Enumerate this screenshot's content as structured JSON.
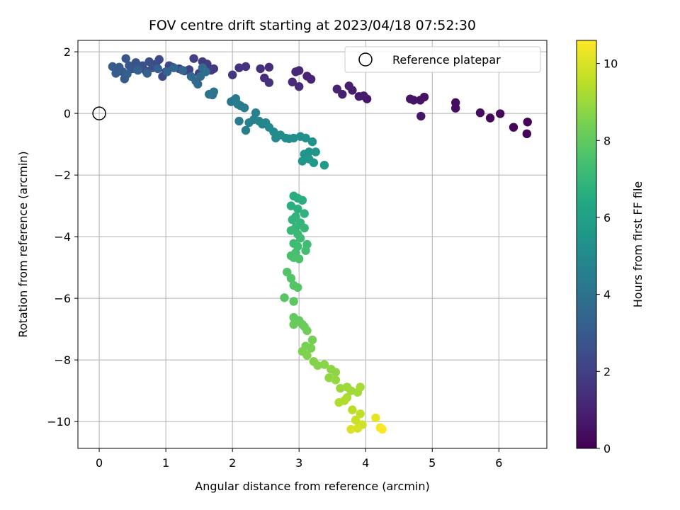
{
  "chart_data": {
    "type": "scatter",
    "title": "FOV centre drift starting at 2023/04/18 07:52:30",
    "xlabel": "Angular distance from reference (arcmin)",
    "ylabel": "Rotation from reference (arcmin)",
    "xlim": [
      -0.32,
      6.72
    ],
    "ylim": [
      -10.87,
      2.37
    ],
    "xticks": [
      0,
      1,
      2,
      3,
      4,
      5,
      6
    ],
    "yticks": [
      2,
      0,
      -2,
      -4,
      -6,
      -8,
      -10
    ],
    "xtick_labels": [
      "0",
      "1",
      "2",
      "3",
      "4",
      "5",
      "6"
    ],
    "ytick_labels": [
      "2",
      "0",
      "−2",
      "−4",
      "−6",
      "−8",
      "−10"
    ],
    "grid": true,
    "colormap": "viridis",
    "colorbar": {
      "label": "Hours from first FF file",
      "min": 0,
      "max": 10.6,
      "ticks": [
        0,
        2,
        4,
        6,
        8,
        10
      ],
      "tick_labels": [
        "0",
        "2",
        "4",
        "6",
        "8",
        "10"
      ]
    },
    "legend": {
      "position": "top-right",
      "entries": [
        "Reference platepar"
      ]
    },
    "reference_point": {
      "x": 0,
      "y": 0
    },
    "points": [
      [
        6.43,
        -0.28,
        0.05
      ],
      [
        6.42,
        -0.66,
        0.1
      ],
      [
        6.22,
        -0.45,
        0.15
      ],
      [
        6.02,
        -0.01,
        0.2
      ],
      [
        5.87,
        -0.15,
        0.25
      ],
      [
        5.72,
        0.02,
        0.3
      ],
      [
        5.35,
        0.35,
        0.35
      ],
      [
        5.35,
        0.17,
        0.4
      ],
      [
        4.88,
        0.53,
        0.45
      ],
      [
        4.82,
        0.43,
        0.5
      ],
      [
        4.72,
        0.43,
        0.55
      ],
      [
        4.67,
        0.47,
        0.6
      ],
      [
        4.83,
        -0.09,
        0.65
      ],
      [
        4.02,
        0.47,
        0.7
      ],
      [
        3.97,
        0.57,
        0.75
      ],
      [
        3.9,
        0.55,
        0.8
      ],
      [
        3.8,
        0.75,
        0.85
      ],
      [
        3.75,
        0.89,
        0.9
      ],
      [
        3.65,
        0.62,
        0.95
      ],
      [
        3.57,
        0.79,
        1.0
      ],
      [
        3.18,
        1.11,
        1.05
      ],
      [
        3.12,
        1.21,
        1.1
      ],
      [
        3.0,
        1.39,
        1.15
      ],
      [
        2.95,
        1.35,
        1.2
      ],
      [
        2.9,
        1.02,
        1.25
      ],
      [
        3.0,
        0.87,
        1.3
      ],
      [
        2.55,
        1.5,
        1.35
      ],
      [
        2.48,
        1.15,
        1.4
      ],
      [
        2.42,
        1.45,
        1.45
      ],
      [
        2.55,
        1.0,
        1.5
      ],
      [
        2.2,
        1.52,
        1.55
      ],
      [
        2.1,
        1.48,
        1.6
      ],
      [
        2.0,
        1.25,
        1.65
      ],
      [
        1.72,
        1.45,
        1.75
      ],
      [
        1.68,
        1.4,
        1.8
      ],
      [
        1.62,
        1.6,
        1.85
      ],
      [
        1.55,
        1.68,
        1.9
      ],
      [
        1.42,
        1.78,
        1.95
      ],
      [
        1.5,
        1.3,
        2.0
      ],
      [
        1.35,
        1.42,
        2.05
      ],
      [
        1.28,
        1.38,
        2.1
      ],
      [
        1.2,
        1.45,
        2.15
      ],
      [
        1.1,
        1.5,
        2.2
      ],
      [
        1.05,
        1.55,
        2.25
      ],
      [
        1.0,
        1.35,
        2.3
      ],
      [
        0.95,
        1.2,
        2.35
      ],
      [
        0.9,
        1.75,
        2.4
      ],
      [
        0.85,
        1.6,
        2.45
      ],
      [
        0.8,
        1.48,
        2.5
      ],
      [
        0.75,
        1.68,
        2.55
      ],
      [
        0.7,
        1.38,
        2.6
      ],
      [
        0.65,
        1.55,
        2.65
      ],
      [
        0.6,
        1.48,
        2.7
      ],
      [
        0.55,
        1.65,
        2.75
      ],
      [
        0.5,
        1.45,
        2.8
      ],
      [
        0.45,
        1.55,
        2.85
      ],
      [
        0.4,
        1.78,
        2.9
      ],
      [
        0.38,
        1.12,
        2.95
      ],
      [
        0.35,
        1.35,
        3.0
      ],
      [
        0.3,
        1.5,
        3.05
      ],
      [
        0.25,
        1.3,
        3.1
      ],
      [
        0.2,
        1.52,
        3.15
      ],
      [
        0.42,
        1.28,
        3.2
      ],
      [
        0.58,
        1.4,
        3.25
      ],
      [
        0.72,
        1.3,
        3.3
      ],
      [
        0.88,
        1.45,
        3.35
      ],
      [
        1.02,
        1.35,
        3.4
      ],
      [
        1.12,
        1.48,
        3.45
      ],
      [
        1.25,
        1.4,
        3.5
      ],
      [
        1.38,
        1.2,
        3.55
      ],
      [
        1.45,
        1.05,
        3.6
      ],
      [
        1.48,
        0.95,
        3.65
      ],
      [
        1.52,
        1.2,
        3.7
      ],
      [
        1.55,
        1.48,
        3.75
      ],
      [
        1.6,
        1.35,
        3.8
      ],
      [
        1.7,
        0.6,
        4.0
      ],
      [
        1.72,
        0.7,
        4.05
      ],
      [
        1.65,
        0.62,
        4.1
      ],
      [
        1.98,
        0.38,
        4.2
      ],
      [
        2.02,
        0.42,
        4.25
      ],
      [
        2.05,
        0.48,
        4.3
      ],
      [
        2.08,
        0.3,
        4.35
      ],
      [
        2.12,
        0.25,
        4.4
      ],
      [
        2.18,
        0.18,
        4.45
      ],
      [
        2.1,
        -0.25,
        4.5
      ],
      [
        2.2,
        -0.55,
        4.55
      ],
      [
        2.25,
        -0.3,
        4.6
      ],
      [
        2.32,
        -0.2,
        4.65
      ],
      [
        2.35,
        0.02,
        4.7
      ],
      [
        2.4,
        -0.25,
        4.75
      ],
      [
        2.45,
        -0.35,
        4.8
      ],
      [
        2.5,
        -0.3,
        4.85
      ],
      [
        2.55,
        -0.45,
        4.9
      ],
      [
        2.62,
        -0.6,
        4.95
      ],
      [
        2.65,
        -0.8,
        5.0
      ],
      [
        2.72,
        -0.7,
        5.05
      ],
      [
        2.8,
        -0.8,
        5.1
      ],
      [
        2.85,
        -0.82,
        5.15
      ],
      [
        2.92,
        -0.8,
        5.2
      ],
      [
        3.02,
        -0.75,
        5.25
      ],
      [
        3.1,
        -0.8,
        5.3
      ],
      [
        3.2,
        -0.92,
        5.35
      ],
      [
        3.15,
        -1.25,
        5.4
      ],
      [
        3.08,
        -1.32,
        5.45
      ],
      [
        3.25,
        -1.25,
        5.5
      ],
      [
        3.05,
        -1.55,
        5.55
      ],
      [
        3.15,
        -1.48,
        5.6
      ],
      [
        3.22,
        -1.6,
        5.65
      ],
      [
        3.38,
        -1.68,
        5.7
      ],
      [
        2.92,
        -2.68,
        6.5
      ],
      [
        2.98,
        -2.75,
        6.55
      ],
      [
        3.05,
        -2.82,
        6.6
      ],
      [
        2.88,
        -3.0,
        6.65
      ],
      [
        2.98,
        -3.1,
        6.7
      ],
      [
        3.08,
        -3.25,
        6.75
      ],
      [
        2.95,
        -3.35,
        6.8
      ],
      [
        2.9,
        -3.45,
        6.85
      ],
      [
        3.02,
        -3.55,
        6.9
      ],
      [
        2.95,
        -3.7,
        6.95
      ],
      [
        3.08,
        -3.72,
        7.0
      ],
      [
        2.88,
        -3.8,
        7.05
      ],
      [
        2.98,
        -3.92,
        7.1
      ],
      [
        3.02,
        -4.05,
        7.15
      ],
      [
        2.92,
        -4.22,
        7.2
      ],
      [
        3.12,
        -4.25,
        7.25
      ],
      [
        2.98,
        -4.32,
        7.3
      ],
      [
        3.1,
        -4.45,
        7.35
      ],
      [
        2.95,
        -4.52,
        7.4
      ],
      [
        2.88,
        -4.62,
        7.45
      ],
      [
        2.92,
        -4.68,
        7.5
      ],
      [
        3.0,
        -4.72,
        7.55
      ],
      [
        2.82,
        -5.15,
        7.65
      ],
      [
        2.88,
        -5.35,
        7.7
      ],
      [
        2.92,
        -5.58,
        7.75
      ],
      [
        2.98,
        -5.65,
        7.8
      ],
      [
        2.78,
        -5.98,
        7.85
      ],
      [
        2.92,
        -6.1,
        7.9
      ],
      [
        2.92,
        -6.62,
        8.0
      ],
      [
        3.0,
        -6.72,
        8.05
      ],
      [
        3.05,
        -6.85,
        8.1
      ],
      [
        2.92,
        -6.85,
        8.15
      ],
      [
        3.08,
        -6.92,
        8.2
      ],
      [
        3.12,
        -7.05,
        8.25
      ],
      [
        3.2,
        -7.35,
        8.35
      ],
      [
        3.1,
        -7.55,
        8.4
      ],
      [
        3.18,
        -7.62,
        8.45
      ],
      [
        3.05,
        -7.72,
        8.5
      ],
      [
        3.12,
        -7.85,
        8.55
      ],
      [
        3.22,
        -8.05,
        8.6
      ],
      [
        3.28,
        -8.18,
        8.65
      ],
      [
        3.38,
        -8.15,
        8.7
      ],
      [
        3.48,
        -8.3,
        8.75
      ],
      [
        3.55,
        -8.4,
        8.8
      ],
      [
        3.45,
        -8.58,
        8.85
      ],
      [
        3.55,
        -8.65,
        8.9
      ],
      [
        3.62,
        -8.92,
        9.0
      ],
      [
        3.72,
        -8.88,
        9.05
      ],
      [
        3.78,
        -9.0,
        9.1
      ],
      [
        3.88,
        -9.05,
        9.15
      ],
      [
        3.92,
        -8.88,
        9.2
      ],
      [
        3.72,
        -9.22,
        9.25
      ],
      [
        3.6,
        -9.38,
        9.3
      ],
      [
        3.68,
        -9.32,
        9.35
      ],
      [
        3.8,
        -9.62,
        9.5
      ],
      [
        3.92,
        -9.75,
        9.6
      ],
      [
        3.85,
        -9.95,
        9.7
      ],
      [
        3.95,
        -10.1,
        9.8
      ],
      [
        3.88,
        -10.22,
        9.9
      ],
      [
        3.78,
        -10.25,
        10.0
      ],
      [
        4.15,
        -9.88,
        10.2
      ],
      [
        4.22,
        -10.2,
        10.4
      ],
      [
        4.25,
        -10.25,
        10.55
      ]
    ]
  }
}
